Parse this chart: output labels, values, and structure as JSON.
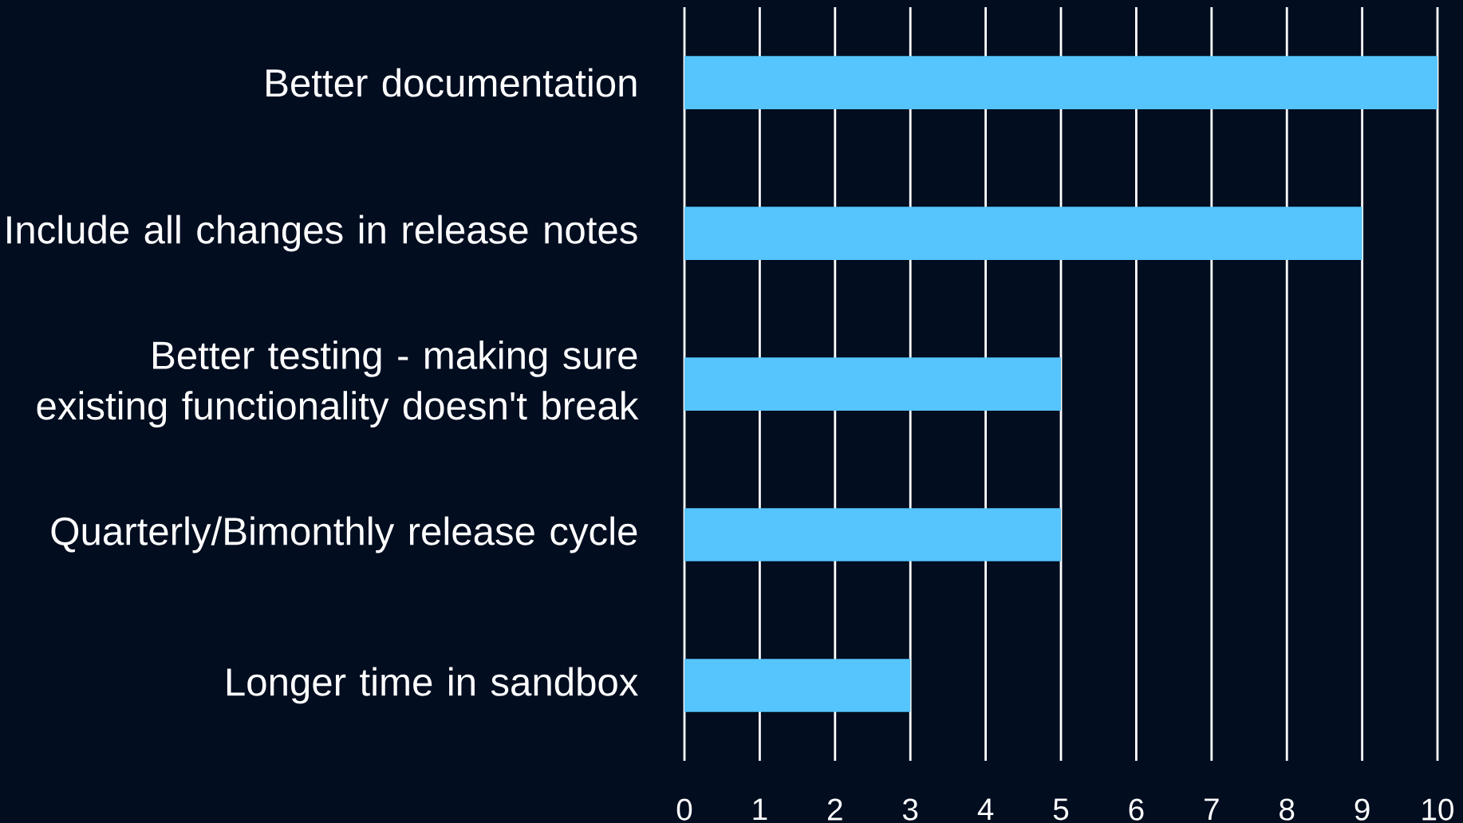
{
  "chart_data": {
    "type": "bar",
    "orientation": "horizontal",
    "categories": [
      "Better documentation",
      "Include all changes in release notes",
      "Better testing - making sure existing functionality doesn't break",
      "Quarterly/Bimonthly release cycle",
      "Longer time in sandbox"
    ],
    "values": [
      10,
      9,
      5,
      5,
      3
    ],
    "color": "#56c4fd",
    "xlim": [
      0,
      10
    ],
    "xticks": [
      0,
      1,
      2,
      3,
      4,
      5,
      6,
      7,
      8,
      9,
      10
    ],
    "grid": "x"
  }
}
